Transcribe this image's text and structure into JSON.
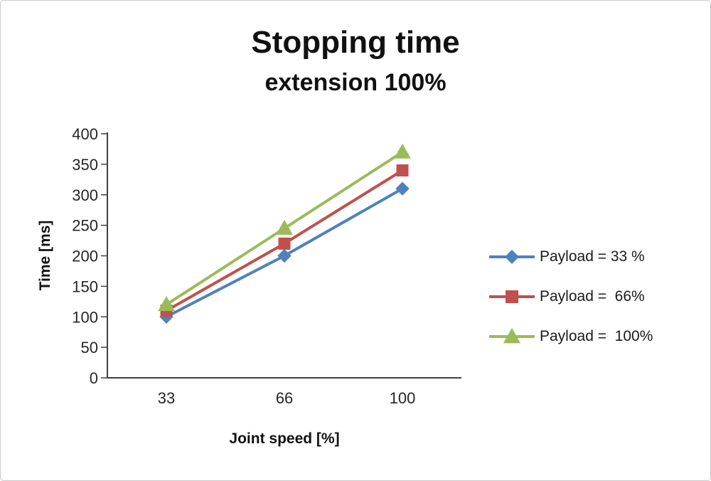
{
  "chart": {
    "title_line1": "Stopping time",
    "title_line2": "extension 100%",
    "xlabel": "Joint speed [%]",
    "ylabel": "Time [ms]"
  },
  "chart_data": {
    "type": "line",
    "title": "Stopping time extension 100%",
    "xlabel": "Joint speed [%]",
    "ylabel": "Time [ms]",
    "categories": [
      "33",
      "66",
      "100"
    ],
    "ylim": [
      0,
      400
    ],
    "ytick_step": 50,
    "grid": false,
    "legend_position": "right",
    "axis_color": "#404040",
    "tick_label_color": "#262626",
    "series": [
      {
        "name": "Payload = 33 %",
        "color": "#4f81bd",
        "marker": "diamond",
        "values": [
          100,
          200,
          310
        ]
      },
      {
        "name": "Payload =  66%",
        "color": "#c0504d",
        "marker": "square",
        "values": [
          110,
          220,
          340
        ]
      },
      {
        "name": "Payload =  100%",
        "color": "#9bbb59",
        "marker": "triangle",
        "values": [
          120,
          245,
          370
        ]
      }
    ]
  }
}
